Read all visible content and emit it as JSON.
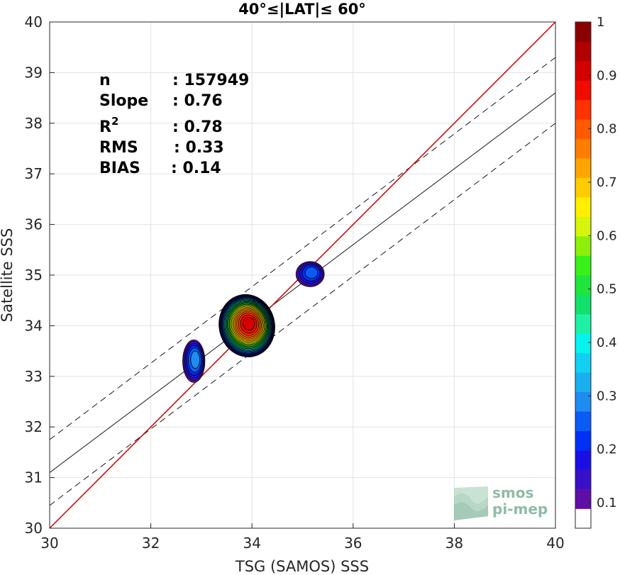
{
  "chart_data": {
    "type": "scatter",
    "subtype": "density-contour",
    "title": "40°≤|LAT|≤ 60°",
    "xlabel": "TSG (SAMOS) SSS",
    "ylabel": "Satellite SSS",
    "xlim": [
      30,
      40
    ],
    "ylim": [
      30,
      40
    ],
    "xticks": [
      "30",
      "32",
      "34",
      "36",
      "38",
      "40"
    ],
    "yticks": [
      "30",
      "31",
      "32",
      "33",
      "34",
      "35",
      "36",
      "37",
      "38",
      "39",
      "40"
    ],
    "grid": true,
    "stats": {
      "n_label": "n",
      "n_value": ": 157949",
      "slope_label": "Slope",
      "slope_value": ": 0.76",
      "r2_label": "R",
      "r2_sup": "2",
      "r2_value": ": 0.78",
      "rms_label": "RMS",
      "rms_value": ": 0.33",
      "bias_label": "BIAS",
      "bias_value": ": 0.14"
    },
    "lines": {
      "identity": {
        "x": [
          30,
          40
        ],
        "y": [
          30,
          40
        ],
        "color": "#cc0000"
      },
      "fit": {
        "x": [
          30,
          40
        ],
        "y": [
          31.1,
          38.6
        ],
        "color": "#000000"
      },
      "upper": {
        "x": [
          30,
          40
        ],
        "y": [
          31.75,
          39.3
        ],
        "color": "#000000",
        "dash": true
      },
      "lower": {
        "x": [
          30,
          40
        ],
        "y": [
          30.45,
          38.0
        ],
        "color": "#000000",
        "dash": true
      }
    },
    "clusters": [
      {
        "cx": 33.9,
        "cy": 34.0,
        "rx": 0.55,
        "ry": 0.62,
        "peak": 0.9
      },
      {
        "cx": 32.85,
        "cy": 33.3,
        "rx": 0.22,
        "ry": 0.42,
        "peak": 0.22
      },
      {
        "cx": 35.15,
        "cy": 35.02,
        "rx": 0.28,
        "ry": 0.25,
        "peak": 0.18
      }
    ],
    "colorbar": {
      "ticks": [
        "0.1",
        "0.2",
        "0.3",
        "0.4",
        "0.5",
        "0.6",
        "0.7",
        "0.8",
        "0.9",
        "1"
      ],
      "colors": [
        "#ffffff",
        "#5f0fa8",
        "#3a0fc8",
        "#1a10e6",
        "#0030f5",
        "#0a5cf5",
        "#1f8cf0",
        "#1aafef",
        "#13d0f2",
        "#06f2ee",
        "#1ef0a4",
        "#12e06a",
        "#1ee63c",
        "#3af01a",
        "#8cf00c",
        "#d7f50c",
        "#ffee00",
        "#ffcc00",
        "#ffa600",
        "#ff7e00",
        "#ff5a00",
        "#ff3200",
        "#f00c00",
        "#d40000",
        "#b00000",
        "#8a0000"
      ]
    },
    "logo": {
      "line1": "smos",
      "line2": "pi-mep"
    }
  }
}
